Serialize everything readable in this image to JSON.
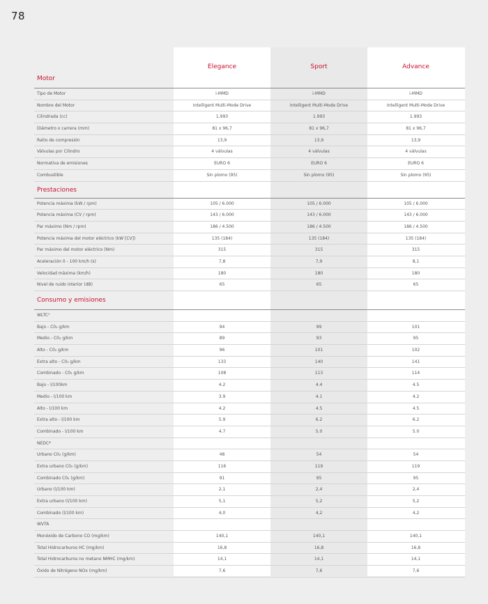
{
  "page_number": "78",
  "columns": [
    "Elegance",
    "Sport",
    "Advance"
  ],
  "sections": [
    {
      "title": "Motor",
      "rows": [
        {
          "label": "Tipo de Motor",
          "values": [
            "i-MMD",
            "i-MMD",
            "i-MMD"
          ]
        },
        {
          "label": "Nombre del Motor",
          "values": [
            "Intelligent Multi-Mode Drive",
            "Intelligent Multi-Mode Drive",
            "Intelligent Multi-Mode Drive"
          ]
        },
        {
          "label": "Cilindrada (cc)",
          "values": [
            "1.993",
            "1.993",
            "1.993"
          ]
        },
        {
          "label": "Diámetro x carrera (mm)",
          "values": [
            "81 x 96,7",
            "81 x 96,7",
            "81 x 96,7"
          ]
        },
        {
          "label": "Ratio de compresión",
          "values": [
            "13,9",
            "13,9",
            "13,9"
          ]
        },
        {
          "label": "Válvulas por Cilindro",
          "values": [
            "4 válvulas",
            "4 válvulas",
            "4 válvulas"
          ]
        },
        {
          "label": "Normativa de emisiones",
          "values": [
            "EURO 6",
            "EURO 6",
            "EURO 6"
          ]
        },
        {
          "label": "Combustible",
          "values": [
            "Sin plomo (95)",
            "Sin plomo (95)",
            "Sin plomo (95)"
          ]
        }
      ]
    },
    {
      "title": "Prestaciones",
      "rows": [
        {
          "label": "Potencia máxima (kW / rpm)",
          "values": [
            "105 / 6.000",
            "105 / 6.000",
            "105 / 6.000"
          ]
        },
        {
          "label": "Potencia máxima (CV / rpm)",
          "values": [
            "143 / 6.000",
            "143 / 6.000",
            "143 / 6.000"
          ]
        },
        {
          "label": "Par máximo (Nm / rpm)",
          "values": [
            "186 / 4.500",
            "186 / 4.500",
            "186 / 4.500"
          ]
        },
        {
          "label": "Potencia máxima del motor eléctrico (kW [CV])",
          "values": [
            "135 (184)",
            "135 (184)",
            "135 (184)"
          ]
        },
        {
          "label": "Par máximo del motor eléctrico (Nm)",
          "values": [
            "315",
            "315",
            "315"
          ]
        },
        {
          "label": "Aceleración 0 - 100 km/h (s)",
          "values": [
            "7,8",
            "7,9",
            "8,1"
          ]
        },
        {
          "label": "Velocidad máxima (km/h)",
          "values": [
            "180",
            "180",
            "180"
          ]
        },
        {
          "label": "Nivel de ruido interior (dB)",
          "values": [
            "65",
            "65",
            "65"
          ]
        }
      ]
    },
    {
      "title": "Consumo y emisiones",
      "rows": [
        {
          "label": "WLTC¹",
          "values": [
            "",
            "",
            ""
          ]
        },
        {
          "label": "Bajo - C0₂ g/km",
          "values": [
            "94",
            "99",
            "101"
          ]
        },
        {
          "label": "Medio - C0₂ g/km",
          "values": [
            "89",
            "93",
            "95"
          ]
        },
        {
          "label": "Alto - C0₂ g/km",
          "values": [
            "96",
            "101",
            "102"
          ]
        },
        {
          "label": "Extra alto - C0₂ g/km",
          "values": [
            "133",
            "140",
            "141"
          ]
        },
        {
          "label": "Combinado - C0₂ g/km",
          "values": [
            "108",
            "113",
            "114"
          ]
        },
        {
          "label": "Bajo - l/100km",
          "values": [
            "4.2",
            "4.4",
            "4.5"
          ]
        },
        {
          "label": "Medio - l/100 km",
          "values": [
            "3.9",
            "4.1",
            "4.2"
          ]
        },
        {
          "label": "Alto - l/100 km",
          "values": [
            "4.2",
            "4.5",
            "4.5"
          ]
        },
        {
          "label": "Extra alto - l/100 km",
          "values": [
            "5.9",
            "6.2",
            "6.2"
          ]
        },
        {
          "label": "Combinado - l/100 km",
          "values": [
            "4.7",
            "5.0",
            "5.0"
          ]
        },
        {
          "label": "NEDC*",
          "values": [
            "",
            "",
            ""
          ]
        },
        {
          "label": "Urbano C0₂ (g/km)",
          "values": [
            "48",
            "54",
            "54"
          ]
        },
        {
          "label": "Extra urbano C0₂ (g/km)",
          "values": [
            "116",
            "119",
            "119"
          ]
        },
        {
          "label": "Combinado C0₂ (g/km)",
          "values": [
            "91",
            "95",
            "95"
          ]
        },
        {
          "label": "Urbano (l/100 km)",
          "values": [
            "2,1",
            "2,4",
            "2,4"
          ]
        },
        {
          "label": "Extra urbano (l/100 km)",
          "values": [
            "5,1",
            "5,2",
            "5,2"
          ]
        },
        {
          "label": "Combinado (l/100 km)",
          "values": [
            "4,0",
            "4,2",
            "4,2"
          ]
        },
        {
          "label": "WVTA",
          "values": [
            "",
            "",
            ""
          ]
        },
        {
          "label": "Monóxido de Carbono CO (mg/km)",
          "values": [
            "140,1",
            "140,1",
            "140,1"
          ]
        },
        {
          "label": "Total Hidrocarburos HC (mg/km)",
          "values": [
            "16,8",
            "16,8",
            "16,8"
          ]
        },
        {
          "label": "Total Hidrocarburos no metano NMHC (mg/km)",
          "values": [
            "14,1",
            "14,1",
            "14,1"
          ]
        },
        {
          "label": "Óxido de Nitrógeno NOx (mg/km)",
          "values": [
            "7,6",
            "7,6",
            "7,6"
          ]
        }
      ]
    }
  ]
}
